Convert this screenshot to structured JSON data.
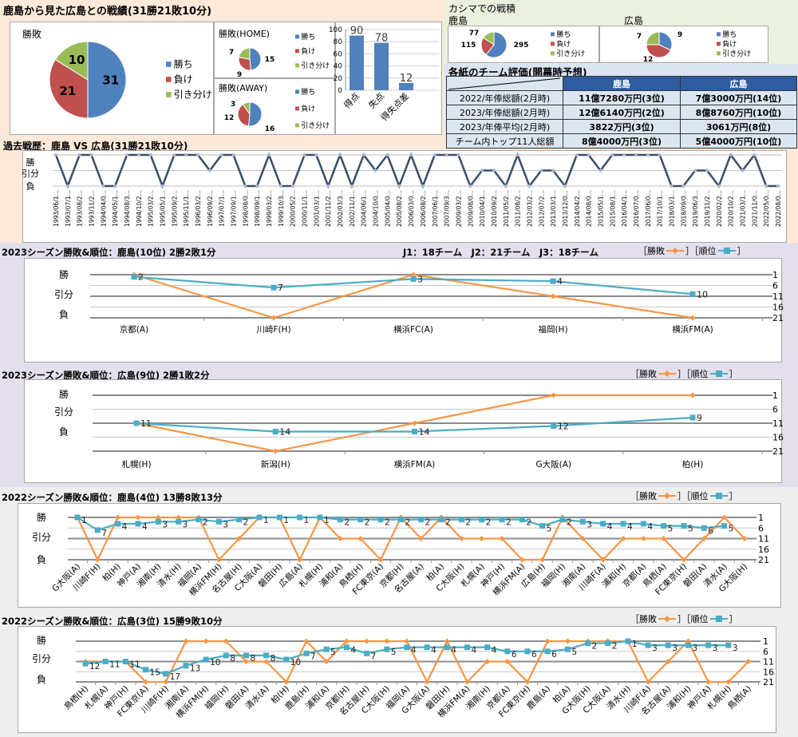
{
  "summary": {
    "title": "鹿島から見た広島との戦績(31勝21敗10分)",
    "main_pie": {
      "title": "勝敗",
      "values": [
        31,
        21,
        10
      ]
    },
    "home_pie": {
      "title": "勝敗(HOME)",
      "values": [
        15,
        9,
        7
      ]
    },
    "away_pie": {
      "title": "勝敗(AWAY)",
      "values": [
        16,
        12,
        3
      ]
    },
    "legend": [
      "勝ち",
      "負け",
      "引き分け"
    ],
    "goals": {
      "categories": [
        "得点",
        "失点",
        "得失点差"
      ],
      "values": [
        90,
        78,
        12
      ],
      "ticks": [
        "0",
        "20",
        "40",
        "60",
        "80",
        "100"
      ],
      "ylim": [
        0,
        100
      ]
    }
  },
  "kashima_stadium": {
    "title": "カシマでの戦積",
    "kashima": {
      "label": "鹿島",
      "values": [
        295,
        115,
        77
      ]
    },
    "hiroshima": {
      "label": "広島",
      "values": [
        9,
        12,
        7
      ]
    }
  },
  "ratings": {
    "title": "各紙のチーム評価(開幕時予想)",
    "headers": [
      "",
      "鹿島",
      "広島"
    ],
    "rows": [
      [
        "2022/年俸総額(2月時)",
        "11億7280万円(3位)",
        "7億3000万円(14位)"
      ],
      [
        "2023/年俸総額(2月時)",
        "12億6140万円(2位)",
        "8億8760万円(10位)"
      ],
      [
        "2023/年俸平均(2月時)",
        "3822万円(3位)",
        "3061万円(8位)"
      ],
      [
        "チーム内トップ11人総額",
        "8億4000万円(3位)",
        "5億4000万円(10位)"
      ]
    ]
  },
  "colors": {
    "win": "#4f81bd",
    "loss": "#c0504d",
    "draw": "#9bbb59",
    "result_line": "#f79646",
    "rank_line": "#4bacc6",
    "history_line": "#3b4e6b",
    "table_header": "#2e5c9e"
  },
  "level_labels": [
    "勝",
    "引分",
    "負"
  ],
  "rank_ticks": [
    "1",
    "6",
    "11",
    "16",
    "21"
  ],
  "legend": {
    "result": "［勝敗",
    "mid": "］［順位",
    "end": "］"
  },
  "league_info": "J1：18チーム　J2：21チーム　J3：18チーム",
  "history": {
    "title": "過去戦歴：鹿島 VS 広島(31勝21敗10分)",
    "dates": [
      "1993/06/1…",
      "1993/07/1…",
      "1993/08/2…",
      "1993/11/2…",
      "1994/04/0…",
      "1994/05/1…",
      "1994/08/3…",
      "1994/10/2…",
      "1995/03/2…",
      "1995/05/1…",
      "1995/09/2…",
      "1995/11/1…",
      "1996/03/2…",
      "1996/09/2…",
      "1997/07/1…",
      "1997/09/1…",
      "1998/08/0…",
      "1998/09/1…",
      "1999/03/2…",
      "1999/10/3…",
      "2000/05/2…",
      "2000/11/1…",
      "2001/03/1…",
      "2001/11/2…",
      "2002/03/3…",
      "2002/11/1…",
      "2004/06/1…",
      "2004/10/0…",
      "2005/04/0…",
      "2005/08/2…",
      "2006/03/0…",
      "2006/08/2…",
      "2007/06/1…",
      "2007/09/3…",
      "2009/03/2…",
      "2009/08/0…",
      "2010/04/1…",
      "2010/09/2…",
      "2011/05/2…",
      "2011/08/2…",
      "2012/03/2…",
      "2012/07/2…",
      "2013/03/1…",
      "2013/12/0…",
      "2014/04/2…",
      "2014/08/0…",
      "2015/05/1…",
      "2015/08/1…",
      "2016/04/1…",
      "2016/07/0…",
      "2017/06/0…",
      "2017/10/1…",
      "2018/03/1…",
      "2018/09/0…",
      "2019/06/3…",
      "2019/11/2…",
      "2020/02/2…",
      "2020/10/2…",
      "2021/03/1…",
      "2021/11/0…",
      "2022/05/0…",
      "2022/08/0…"
    ],
    "results": [
      "W",
      "L",
      "W",
      "W",
      "L",
      "L",
      "W",
      "W",
      "W",
      "L",
      "W",
      "W",
      "W",
      "D",
      "W",
      "W",
      "L",
      "L",
      "W",
      "L",
      "L",
      "W",
      "W",
      "L",
      "W",
      "L",
      "W",
      "D",
      "W",
      "L",
      "W",
      "L",
      "W",
      "W",
      "W",
      "L",
      "D",
      "D",
      "L",
      "W",
      "L",
      "D",
      "D",
      "L",
      "W",
      "W",
      "D",
      "W",
      "W",
      "W",
      "W",
      "W",
      "L",
      "L",
      "D",
      "D",
      "L",
      "W",
      "D",
      "W",
      "L",
      "L"
    ]
  },
  "seasons": [
    {
      "title": "2023シーズン勝敗&順位：鹿島(10位) 2勝2敗1分",
      "opponents": [
        "京都(A)",
        "川崎F(H)",
        "横浜FC(A)",
        "福岡(H)",
        "横浜FM(A)"
      ],
      "results": [
        "W",
        "L",
        "W",
        "D",
        "L"
      ],
      "ranks": [
        2,
        7,
        3,
        4,
        10
      ]
    },
    {
      "title": "2023シーズン勝敗&順位：広島(9位) 2勝1敗2分",
      "opponents": [
        "札幌(H)",
        "新潟(H)",
        "横浜FM(A)",
        "G大阪(A)",
        "柏(H)"
      ],
      "results": [
        "D",
        "L",
        "D",
        "W",
        "W"
      ],
      "ranks": [
        11,
        14,
        14,
        12,
        9
      ]
    },
    {
      "title": "2022シーズン勝敗&順位：鹿島(4位) 13勝8敗13分",
      "opponents": [
        "G大阪(A)",
        "川崎F(H)",
        "柏(H)",
        "神戸(A)",
        "湘南(H)",
        "清水(H)",
        "福岡(A)",
        "横浜FM(H)",
        "名古屋(H)",
        "C大阪(A)",
        "磐田(H)",
        "広島(A)",
        "札幌(H)",
        "浦和(A)",
        "鳥栖(H)",
        "FC東京(A)",
        "京都(H)",
        "名古屋(A)",
        "柏(A)",
        "C大阪(H)",
        "札幌(A)",
        "神戸(H)",
        "横浜FM(A)",
        "広島(H)",
        "福岡(H)",
        "湘南(A)",
        "川崎F(A)",
        "浦和(H)",
        "京都(A)",
        "鳥栖(A)",
        "FC東京(H)",
        "磐田(A)",
        "清水(A)",
        "G大阪(H)"
      ],
      "results": [
        "W",
        "L",
        "W",
        "W",
        "W",
        "W",
        "W",
        "L",
        "D",
        "W",
        "W",
        "L",
        "W",
        "D",
        "D",
        "L",
        "W",
        "D",
        "W",
        "D",
        "D",
        "D",
        "L",
        "L",
        "W",
        "D",
        "L",
        "D",
        "D",
        "D",
        "L",
        "D",
        "W",
        "D"
      ],
      "ranks": [
        1,
        7,
        4,
        4,
        3,
        3,
        2,
        3,
        2,
        1,
        1,
        1,
        1,
        2,
        2,
        2,
        2,
        2,
        2,
        2,
        2,
        2,
        2,
        5,
        2,
        3,
        4,
        4,
        4,
        5,
        5,
        6,
        5,
        null
      ]
    },
    {
      "title": "2022シーズン勝敗&順位：広島(3位) 15勝9敗10分",
      "opponents": [
        "鳥栖(H)",
        "札幌(A)",
        "神戸(H)",
        "FC東京(A)",
        "川崎F(H)",
        "湘南(A)",
        "横浜FM(H)",
        "福岡(H)",
        "磐田(A)",
        "清水(A)",
        "柏(H)",
        "鹿島(H)",
        "浦和(A)",
        "京都(H)",
        "名古屋(H)",
        "C大阪(H)",
        "福岡(A)",
        "G大阪(A)",
        "磐田(H)",
        "横浜FM(A)",
        "湘南(H)",
        "京都(A)",
        "FC東京(H)",
        "鹿島(A)",
        "柏(A)",
        "G大阪(H)",
        "C大阪(A)",
        "清水(H)",
        "川崎F(A)",
        "名古屋(A)",
        "浦和(H)",
        "神戸(A)",
        "札幌(H)",
        "鳥栖(A)"
      ],
      "results": [
        "D",
        "D",
        "D",
        "L",
        "L",
        "W",
        "W",
        "W",
        "D",
        "D",
        "L",
        "W",
        "D",
        "W",
        "W",
        "W",
        "W",
        "L",
        "W",
        "L",
        "D",
        "D",
        "L",
        "W",
        "W",
        "W",
        "W",
        "W",
        "L",
        "D",
        "W",
        "L",
        "L",
        "D"
      ],
      "ranks": [
        12,
        11,
        11,
        15,
        17,
        13,
        10,
        8,
        8,
        8,
        10,
        7,
        5,
        4,
        7,
        5,
        4,
        4,
        4,
        4,
        4,
        6,
        6,
        6,
        5,
        2,
        2,
        1,
        3,
        3,
        3,
        3,
        3,
        null
      ]
    }
  ]
}
